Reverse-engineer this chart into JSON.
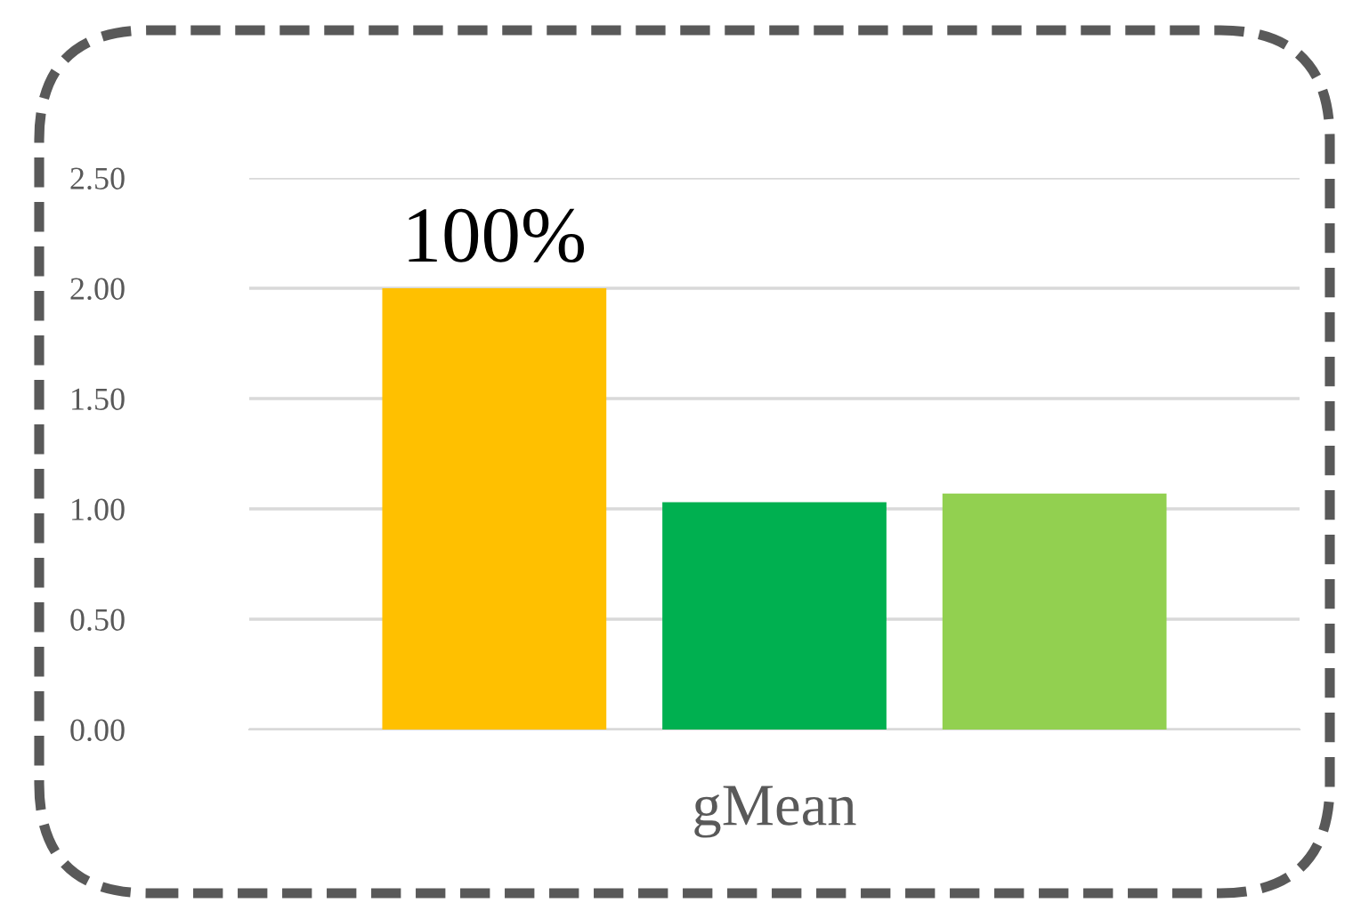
{
  "chart_data": {
    "type": "bar",
    "categories": [
      "gMean"
    ],
    "series": [
      {
        "color": "#ffc000",
        "values": [
          2.0
        ]
      },
      {
        "color": "#00b050",
        "values": [
          1.03
        ]
      },
      {
        "color": "#92d050",
        "values": [
          1.07
        ]
      }
    ],
    "ylim": [
      0,
      2.5
    ],
    "yticks": [
      {
        "value": 0,
        "label": "0.00"
      },
      {
        "value": 0.5,
        "label": "0.50"
      },
      {
        "value": 1,
        "label": "1.00"
      },
      {
        "value": 1.5,
        "label": "1.50"
      },
      {
        "value": 2,
        "label": "2.00"
      },
      {
        "value": 2.5,
        "label": "2.50"
      }
    ],
    "grid": "y",
    "legend": false,
    "annotations": [
      "100%"
    ]
  }
}
